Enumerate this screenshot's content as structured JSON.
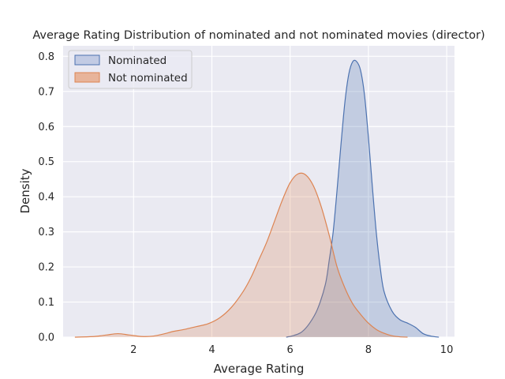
{
  "chart_data": {
    "type": "area",
    "title": "Average Rating Distribution of nominated and not nominated movies (director)",
    "xlabel": "Average Rating",
    "ylabel": "Density",
    "xlim": [
      0.2,
      10.2
    ],
    "ylim": [
      0,
      0.83
    ],
    "xticks": [
      2,
      4,
      6,
      8,
      10
    ],
    "yticks": [
      0.0,
      0.1,
      0.2,
      0.3,
      0.4,
      0.5,
      0.6,
      0.7,
      0.8
    ],
    "grid": true,
    "legend_position": "top-left",
    "series": [
      {
        "name": "Nominated",
        "color": "#4c72b0",
        "fill_color": "#c2cbe4",
        "x": [
          5.9,
          6.1,
          6.3,
          6.5,
          6.7,
          6.9,
          7.0,
          7.1,
          7.2,
          7.3,
          7.4,
          7.5,
          7.6,
          7.7,
          7.8,
          7.9,
          8.0,
          8.1,
          8.2,
          8.3,
          8.4,
          8.6,
          8.8,
          9.0,
          9.2,
          9.4,
          9.6,
          9.8
        ],
        "y": [
          0.0,
          0.005,
          0.015,
          0.04,
          0.08,
          0.15,
          0.22,
          0.3,
          0.42,
          0.55,
          0.67,
          0.75,
          0.785,
          0.785,
          0.76,
          0.69,
          0.57,
          0.43,
          0.3,
          0.2,
          0.13,
          0.075,
          0.05,
          0.04,
          0.028,
          0.01,
          0.003,
          0.0
        ]
      },
      {
        "name": "Not nominated",
        "color": "#dd8452",
        "fill_color": "#e8b49a",
        "x": [
          0.5,
          1.0,
          1.3,
          1.6,
          1.9,
          2.2,
          2.5,
          2.8,
          3.0,
          3.3,
          3.6,
          3.9,
          4.2,
          4.5,
          4.8,
          5.0,
          5.2,
          5.4,
          5.6,
          5.8,
          6.0,
          6.2,
          6.4,
          6.6,
          6.8,
          7.0,
          7.2,
          7.4,
          7.6,
          7.8,
          8.0,
          8.2,
          8.4,
          8.6,
          8.8,
          9.0
        ],
        "y": [
          0.0,
          0.002,
          0.006,
          0.01,
          0.006,
          0.002,
          0.003,
          0.01,
          0.016,
          0.022,
          0.03,
          0.038,
          0.055,
          0.085,
          0.13,
          0.17,
          0.22,
          0.27,
          0.33,
          0.39,
          0.44,
          0.465,
          0.462,
          0.43,
          0.37,
          0.29,
          0.2,
          0.14,
          0.095,
          0.065,
          0.04,
          0.022,
          0.011,
          0.004,
          0.001,
          0.0
        ]
      }
    ]
  }
}
